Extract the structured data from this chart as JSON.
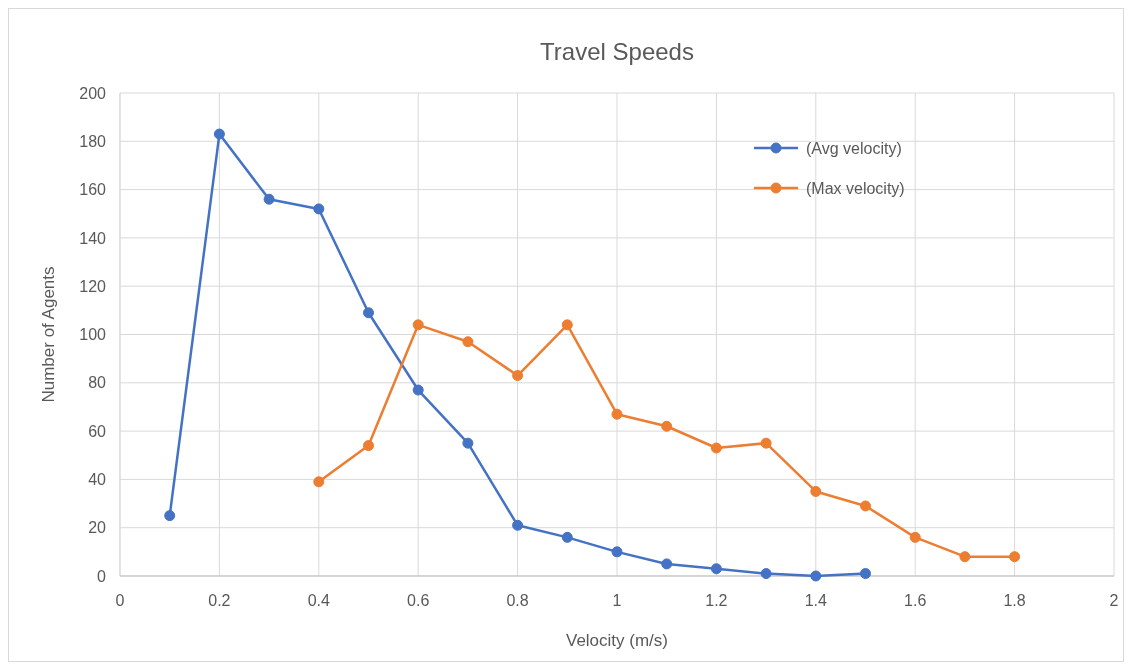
{
  "chart_data": {
    "type": "line",
    "title": "Travel Speeds",
    "xlabel": "Velocity (m/s)",
    "ylabel": "Number of Agents",
    "xlim": [
      0,
      2
    ],
    "xticks": [
      0,
      {
        "value": 0.2,
        "label": "0.2"
      },
      {
        "value": 0.4,
        "label": "0.4"
      },
      {
        "value": 0.6,
        "label": "0.6"
      },
      {
        "value": 0.8,
        "label": "0.8"
      },
      1,
      {
        "value": 1.2,
        "label": "1.2"
      },
      {
        "value": 1.4,
        "label": "1.4"
      },
      {
        "value": 1.6,
        "label": "1.6"
      },
      {
        "value": 1.8,
        "label": "1.8"
      },
      2
    ],
    "ylim": [
      0,
      200
    ],
    "yticks": [
      0,
      20,
      40,
      60,
      80,
      100,
      120,
      140,
      160,
      180,
      200
    ],
    "grid": true,
    "legend": "top right",
    "marker": "circle",
    "line_style": "solid",
    "series": [
      {
        "name": "(Avg velocity)",
        "color": "#4472c4",
        "x": [
          0.1,
          0.2,
          0.3,
          0.4,
          0.5,
          0.6,
          0.7,
          0.8,
          0.9,
          1.0,
          1.1,
          1.2,
          1.3,
          1.4,
          1.5
        ],
        "values": [
          25,
          183,
          156,
          152,
          109,
          77,
          55,
          21,
          16,
          10,
          5,
          3,
          1,
          0,
          1
        ]
      },
      {
        "name": "(Max velocity)",
        "color": "#ed7d31",
        "x": [
          0.4,
          0.5,
          0.6,
          0.7,
          0.8,
          0.9,
          1.0,
          1.1,
          1.2,
          1.3,
          1.4,
          1.5,
          1.6,
          1.7,
          1.8
        ],
        "values": [
          39,
          54,
          104,
          97,
          83,
          104,
          67,
          62,
          53,
          55,
          35,
          29,
          16,
          8,
          8
        ]
      }
    ]
  }
}
